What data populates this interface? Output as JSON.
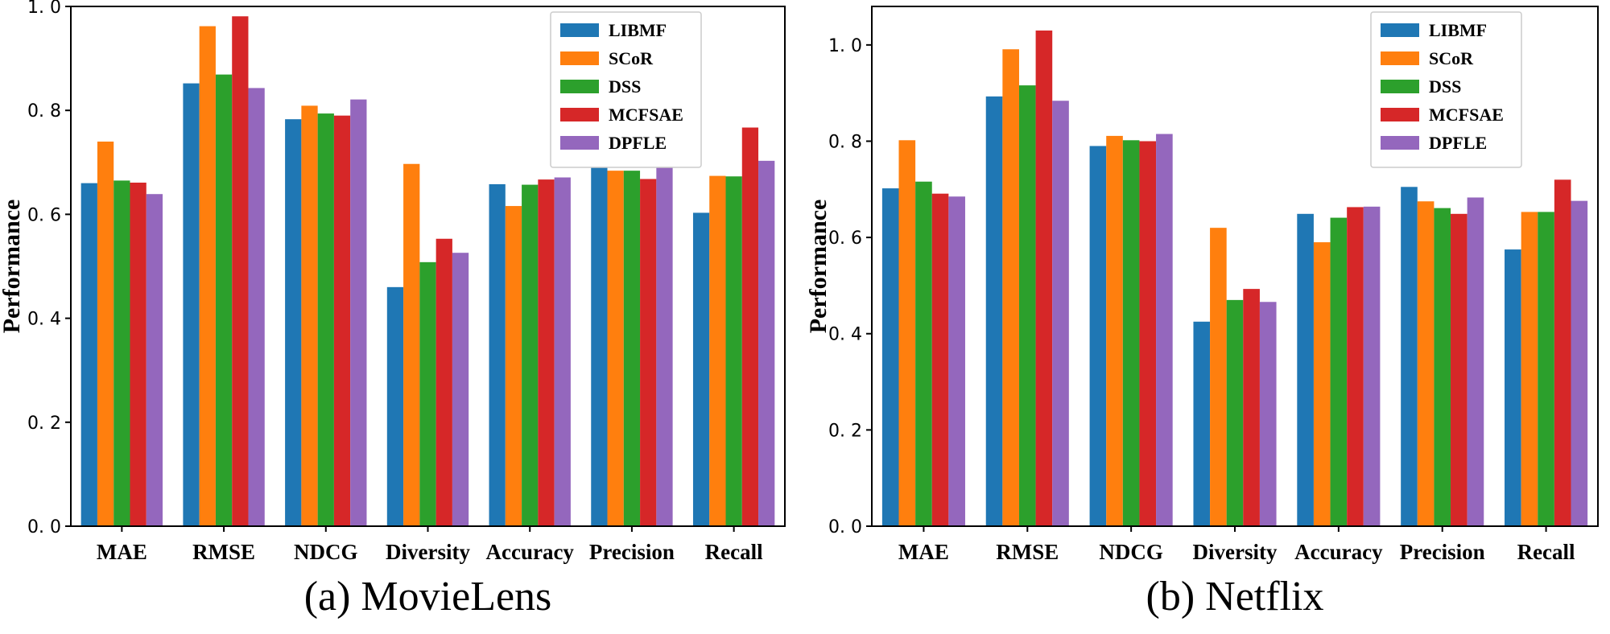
{
  "figure": {
    "series_colors": [
      "#1f77b4",
      "#ff7f0e",
      "#2ca02c",
      "#d62728",
      "#9467bd"
    ]
  },
  "chart_data": [
    {
      "type": "bar",
      "caption": "(a) MovieLens",
      "xlabel": "",
      "ylabel": "Performance",
      "ylim": [
        0,
        1.0
      ],
      "yticks": [
        "0. 0",
        "0. 2",
        "0. 4",
        "0. 6",
        "0. 8",
        "1. 0"
      ],
      "ytick_values": [
        0,
        0.2,
        0.4,
        0.6,
        0.8,
        1.0
      ],
      "legend_position": "top-right",
      "categories": [
        "MAE",
        "RMSE",
        "NDCG",
        "Diversity",
        "Accuracy",
        "Precision",
        "Recall"
      ],
      "series": [
        {
          "name": "LIBMF",
          "values": [
            0.66,
            0.852,
            0.783,
            0.46,
            0.658,
            0.717,
            0.603
          ]
        },
        {
          "name": "SCoR",
          "values": [
            0.74,
            0.962,
            0.809,
            0.697,
            0.616,
            0.684,
            0.674
          ]
        },
        {
          "name": "DSS",
          "values": [
            0.665,
            0.869,
            0.794,
            0.508,
            0.657,
            0.684,
            0.673
          ]
        },
        {
          "name": "MCFSAE",
          "values": [
            0.661,
            0.981,
            0.79,
            0.553,
            0.667,
            0.668,
            0.767
          ]
        },
        {
          "name": "DPFLE",
          "values": [
            0.639,
            0.843,
            0.821,
            0.526,
            0.671,
            0.693,
            0.703
          ]
        }
      ]
    },
    {
      "type": "bar",
      "caption": "(b) Netflix",
      "xlabel": "",
      "ylabel": "Performance",
      "ylim": [
        0,
        1.08
      ],
      "yticks": [
        "0. 0",
        "0. 2",
        "0. 4",
        "0. 6",
        "0. 8",
        "1. 0"
      ],
      "ytick_values": [
        0,
        0.2,
        0.4,
        0.6,
        0.8,
        1.0
      ],
      "legend_position": "top-right",
      "categories": [
        "MAE",
        "RMSE",
        "NDCG",
        "Diversity",
        "Accuracy",
        "Precision",
        "Recall"
      ],
      "series": [
        {
          "name": "LIBMF",
          "values": [
            0.702,
            0.893,
            0.79,
            0.425,
            0.649,
            0.705,
            0.575
          ]
        },
        {
          "name": "SCoR",
          "values": [
            0.802,
            0.991,
            0.811,
            0.62,
            0.59,
            0.675,
            0.653
          ]
        },
        {
          "name": "DSS",
          "values": [
            0.716,
            0.916,
            0.802,
            0.47,
            0.641,
            0.661,
            0.653
          ]
        },
        {
          "name": "MCFSAE",
          "values": [
            0.691,
            1.03,
            0.8,
            0.493,
            0.663,
            0.649,
            0.72
          ]
        },
        {
          "name": "DPFLE",
          "values": [
            0.685,
            0.884,
            0.815,
            0.466,
            0.664,
            0.683,
            0.676
          ]
        }
      ]
    }
  ]
}
